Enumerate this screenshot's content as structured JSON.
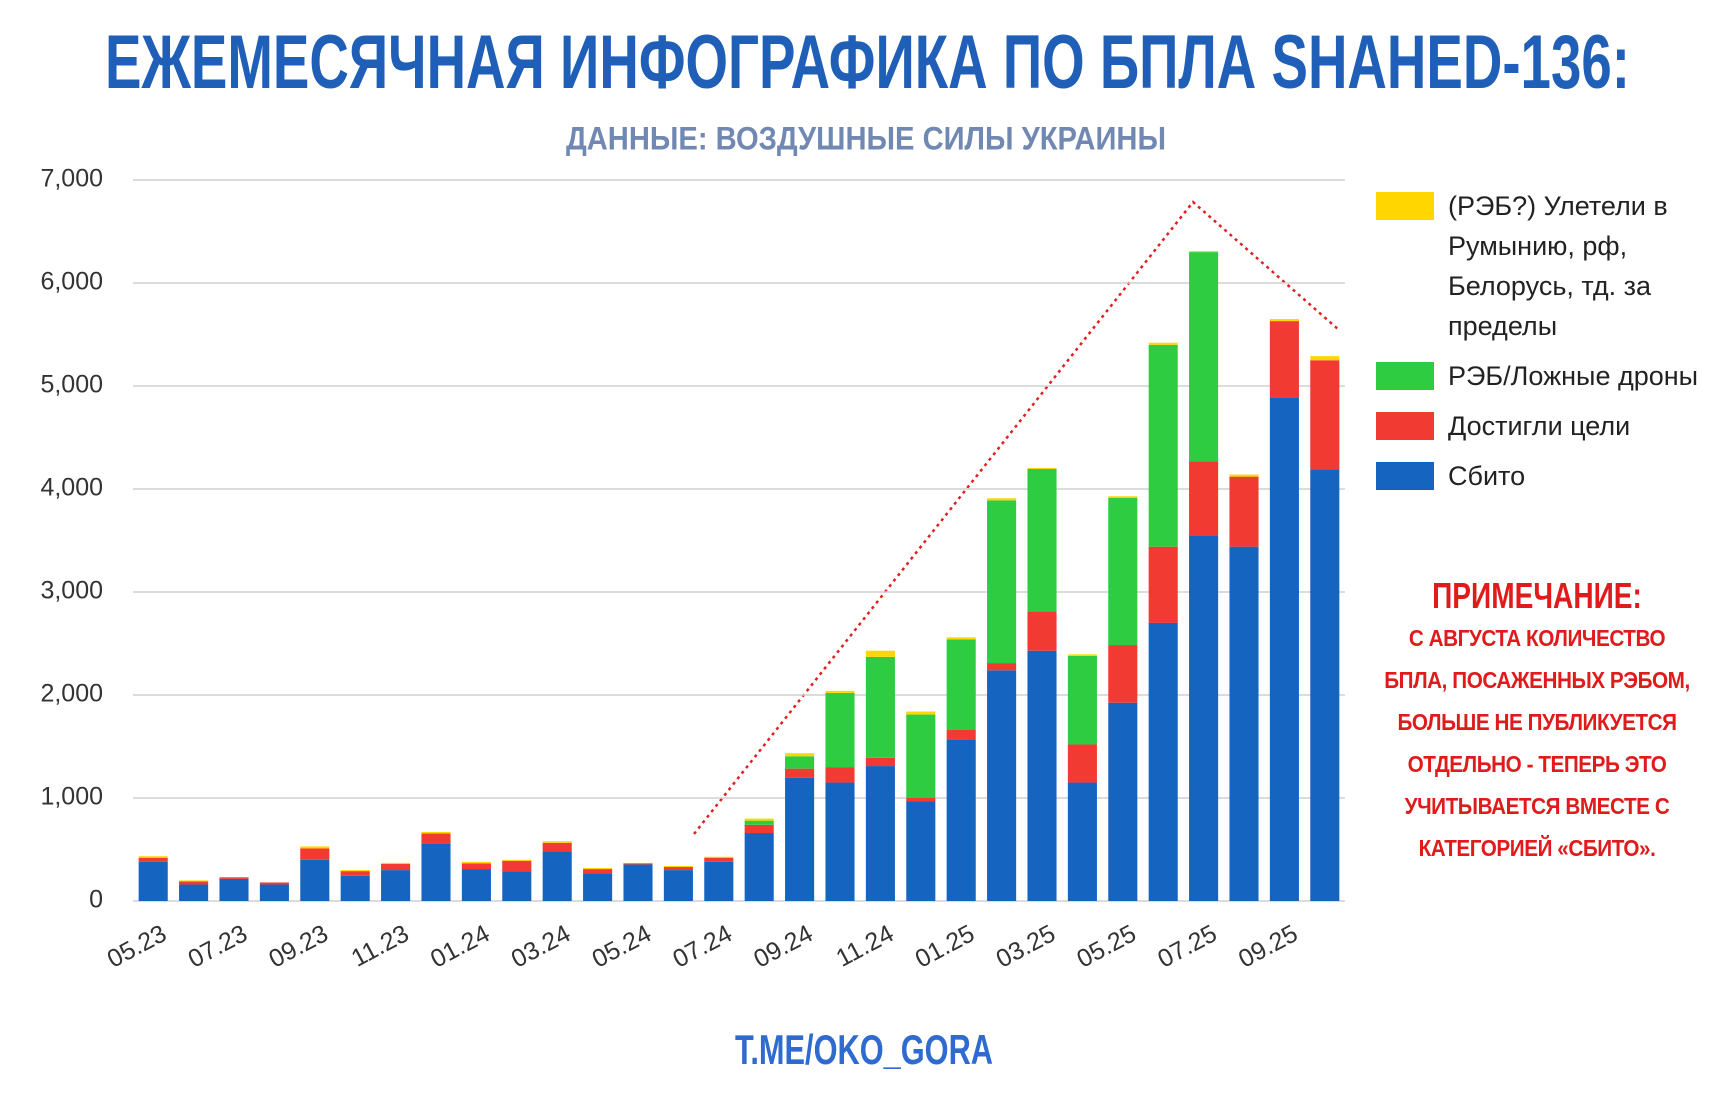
{
  "chart_data": {
    "type": "stacked_bar",
    "title": "ЕЖЕМЕСЯЧНАЯ ИНФОГРАФИКА ПО БПЛА SHAHED-136:",
    "subtitle": "ДАННЫЕ: ВОЗДУШНЫЕ СИЛЫ УКРАИНЫ",
    "categories": [
      "05.23",
      null,
      "07.23",
      null,
      "09.23",
      null,
      "11.23",
      null,
      "01.24",
      null,
      "03.24",
      null,
      "05.24",
      null,
      "07.24",
      null,
      "09.24",
      null,
      "11.24",
      null,
      "01.25",
      null,
      "03.25",
      null,
      "05.25",
      null,
      "07.25",
      null,
      "09.25",
      null
    ],
    "series": [
      {
        "name": "Сбито",
        "color": "#1565c0",
        "values": [
          380,
          160,
          215,
          160,
          400,
          245,
          300,
          560,
          310,
          290,
          480,
          270,
          355,
          300,
          380,
          660,
          1195,
          1150,
          1310,
          970,
          1570,
          2240,
          2430,
          1150,
          1925,
          2700,
          3550,
          3440,
          4890,
          4190
        ]
      },
      {
        "name": "Достигли цели",
        "color": "#f03a32",
        "values": [
          40,
          30,
          15,
          20,
          110,
          45,
          60,
          95,
          55,
          100,
          85,
          40,
          10,
          30,
          40,
          80,
          90,
          150,
          80,
          30,
          90,
          70,
          380,
          370,
          560,
          740,
          720,
          680,
          740,
          1060
        ]
      },
      {
        "name": "РЭБ/Ложные дроны",
        "color": "#2ecc40",
        "values": [
          0,
          0,
          0,
          0,
          0,
          0,
          0,
          0,
          0,
          0,
          0,
          0,
          0,
          0,
          0,
          40,
          120,
          720,
          980,
          810,
          880,
          1580,
          1385,
          860,
          1430,
          1960,
          2030,
          0,
          0,
          0
        ]
      },
      {
        "name": "(РЭБ?) Улетели в Румынию, рф, Белорусь, тд. за пределы",
        "color": "#ffd600",
        "values": [
          15,
          10,
          0,
          0,
          20,
          10,
          10,
          15,
          15,
          10,
          15,
          10,
          5,
          10,
          10,
          20,
          30,
          20,
          60,
          30,
          20,
          20,
          10,
          15,
          15,
          20,
          10,
          20,
          20,
          40
        ]
      }
    ],
    "ylim": [
      0,
      7000
    ],
    "yticks": [
      0,
      {
        "value": 1000,
        "label": "1,000"
      },
      {
        "value": 2000,
        "label": "2,000"
      },
      {
        "value": 3000,
        "label": "3,000"
      },
      {
        "value": 4000,
        "label": "4,000"
      },
      {
        "value": 5000,
        "label": "5,000"
      },
      {
        "value": 6000,
        "label": "6,000"
      },
      {
        "value": 7000,
        "label": "7,000"
      }
    ],
    "grid": true,
    "legend": "right",
    "note_title": "ПРИМЕЧАНИЕ:",
    "note": "С АВГУСТА КОЛИЧЕСТВО БПЛА, ПОСАЖЕННЫХ РЭБОМ, БОЛЬШЕ НЕ ПУБЛИКУЕТСЯ ОТДЕЛЬНО - ТЕПЕРЬ ЭТО УЧИТЫВАЕТСЯ ВМЕСТЕ С КАТЕГОРИЕЙ «СБИТО».",
    "footer": "T.ME/OKO_GORA"
  }
}
